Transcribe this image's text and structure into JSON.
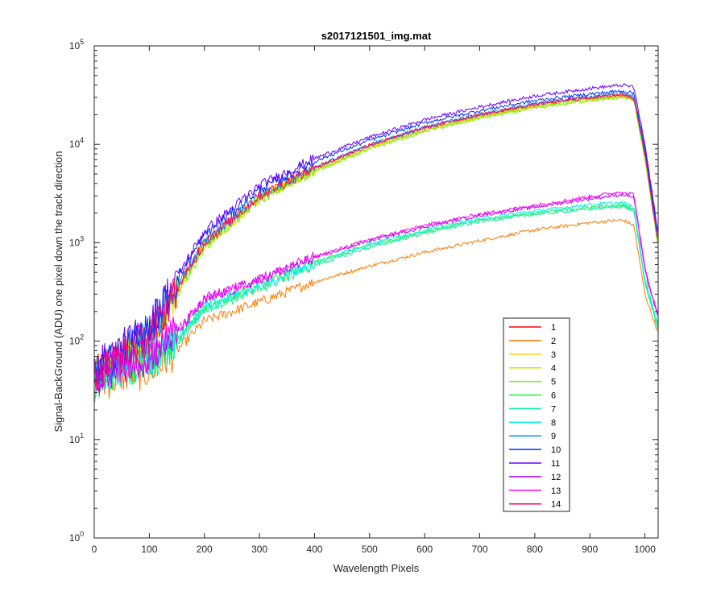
{
  "chart_data": {
    "type": "line",
    "title": "s2017121501_img.mat",
    "xlabel": "Wavelength Pixels",
    "ylabel": "Signal-BackGround (ADU) one pixel down the track direction",
    "xlim": [
      0,
      1024
    ],
    "ylim": [
      1,
      100000
    ],
    "yscale": "log",
    "grid": false,
    "legend_position": "lower-right",
    "x_ticks": [
      0,
      100,
      200,
      300,
      400,
      500,
      600,
      700,
      800,
      900,
      1000
    ],
    "x_tick_labels": [
      "0",
      "100",
      "200",
      "300",
      "400",
      "500",
      "600",
      "700",
      "800",
      "900",
      "1000"
    ],
    "y_ticks": [
      1,
      10,
      100,
      1000,
      10000,
      100000
    ],
    "y_tick_labels": [
      {
        "base": "10",
        "exp": "0"
      },
      {
        "base": "10",
        "exp": "1"
      },
      {
        "base": "10",
        "exp": "2"
      },
      {
        "base": "10",
        "exp": "3"
      },
      {
        "base": "10",
        "exp": "4"
      },
      {
        "base": "10",
        "exp": "5"
      }
    ],
    "x": [
      0,
      50,
      100,
      150,
      200,
      300,
      400,
      500,
      600,
      700,
      800,
      900,
      960,
      980,
      1000,
      1024
    ],
    "series": [
      {
        "name": "1",
        "color": "#ff0000",
        "values": [
          45,
          70,
          110,
          340,
          1000,
          3000,
          5800,
          9800,
          14800,
          20000,
          25500,
          30000,
          32000,
          30000,
          8000,
          1000
        ]
      },
      {
        "name": "2",
        "color": "#ff7a00",
        "values": [
          35,
          45,
          50,
          80,
          160,
          250,
          400,
          580,
          800,
          1050,
          1350,
          1600,
          1700,
          1500,
          300,
          120
        ]
      },
      {
        "name": "3",
        "color": "#ffd500",
        "values": [
          45,
          70,
          105,
          320,
          940,
          2850,
          5500,
          9300,
          14000,
          19000,
          24500,
          29000,
          31000,
          29000,
          7500,
          950
        ]
      },
      {
        "name": "4",
        "color": "#c4ea00",
        "values": [
          44,
          68,
          100,
          310,
          920,
          2800,
          5400,
          9100,
          13800,
          18800,
          24000,
          28500,
          30500,
          28500,
          7300,
          930
        ]
      },
      {
        "name": "5",
        "color": "#77f000",
        "values": [
          43,
          66,
          98,
          300,
          900,
          2750,
          5300,
          9000,
          13600,
          18500,
          23500,
          28000,
          30000,
          28000,
          7100,
          910
        ]
      },
      {
        "name": "6",
        "color": "#20f53a",
        "values": [
          38,
          52,
          60,
          100,
          220,
          360,
          620,
          950,
          1300,
          1700,
          2000,
          2300,
          2400,
          2200,
          400,
          140
        ]
      },
      {
        "name": "7",
        "color": "#00f0a0",
        "values": [
          37,
          50,
          58,
          95,
          210,
          340,
          590,
          900,
          1250,
          1650,
          1950,
          2200,
          2350,
          2100,
          390,
          130
        ]
      },
      {
        "name": "8",
        "color": "#00f0f0",
        "values": [
          40,
          54,
          62,
          105,
          230,
          370,
          640,
          980,
          1350,
          1750,
          2100,
          2450,
          2550,
          2300,
          430,
          150
        ]
      },
      {
        "name": "9",
        "color": "#0095ff",
        "values": [
          46,
          72,
          112,
          345,
          1010,
          3050,
          5900,
          9900,
          15000,
          20200,
          25800,
          30500,
          33000,
          31000,
          8200,
          1050
        ]
      },
      {
        "name": "10",
        "color": "#0033ff",
        "values": [
          50,
          80,
          130,
          420,
          1200,
          3500,
          6700,
          11000,
          16500,
          22000,
          27800,
          32500,
          35000,
          33000,
          9000,
          1150
        ]
      },
      {
        "name": "11",
        "color": "#6a00ff",
        "values": [
          52,
          85,
          140,
          450,
          1300,
          3800,
          7200,
          11800,
          17800,
          24000,
          31000,
          37000,
          40000,
          38000,
          10000,
          1250
        ]
      },
      {
        "name": "12",
        "color": "#b400ff",
        "values": [
          42,
          58,
          70,
          120,
          260,
          420,
          700,
          1050,
          1450,
          1900,
          2300,
          2800,
          3100,
          2900,
          520,
          170
        ]
      },
      {
        "name": "13",
        "color": "#ff00f0",
        "values": [
          43,
          60,
          72,
          125,
          270,
          430,
          720,
          1080,
          1500,
          1950,
          2400,
          2950,
          3300,
          3100,
          550,
          180
        ]
      },
      {
        "name": "14",
        "color": "#ff006a",
        "values": [
          45,
          72,
          110,
          335,
          990,
          2980,
          5750,
          9750,
          14700,
          19900,
          25400,
          29900,
          31800,
          29800,
          7900,
          990
        ]
      }
    ]
  }
}
